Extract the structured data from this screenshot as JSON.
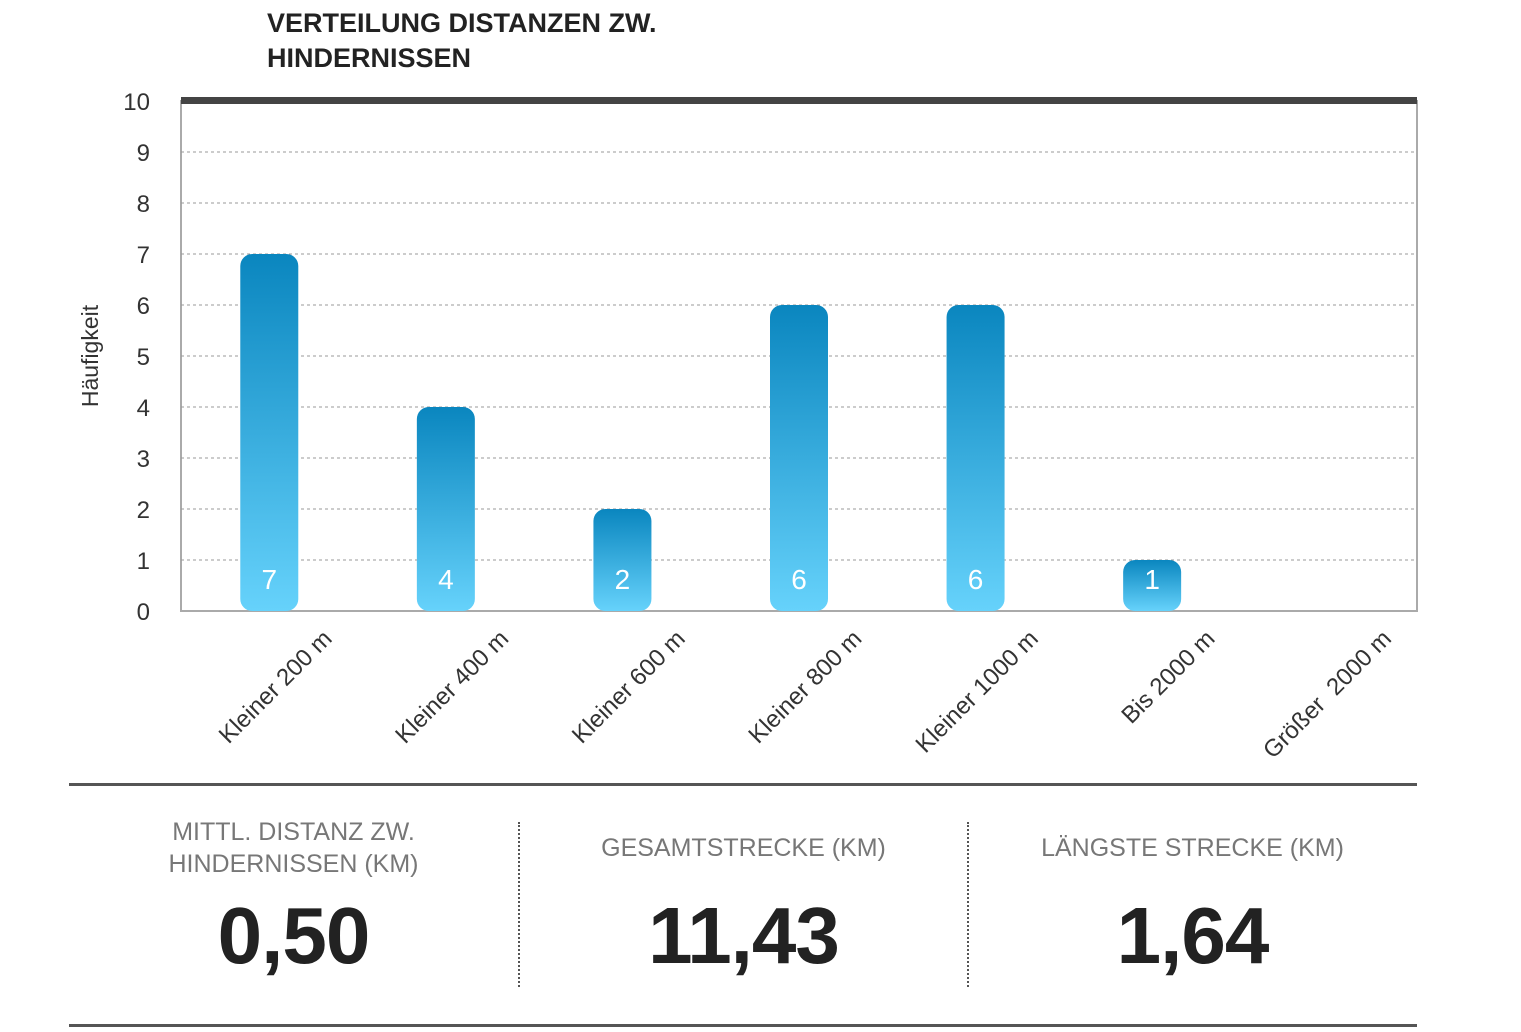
{
  "chart_data": {
    "type": "bar",
    "title": "VERTEILUNG DISTANZEN ZW. HINDERNISSEN",
    "title_lines": [
      "VERTEILUNG DISTANZEN ZW.",
      "HINDERNISSEN"
    ],
    "xlabel": "",
    "ylabel": "Häufigkeit",
    "ylim": [
      0,
      10
    ],
    "yticks": [
      0,
      1,
      2,
      3,
      4,
      5,
      6,
      7,
      8,
      9,
      10
    ],
    "grid": true,
    "categories": [
      "Kleiner 200 m",
      "Kleiner 400 m",
      "Kleiner 600 m",
      "Kleiner 800 m",
      "Kleiner 1000 m",
      "Bis 2000 m",
      "Größer  2000 m"
    ],
    "values": [
      7,
      4,
      2,
      6,
      6,
      1,
      0
    ],
    "data_labels": true,
    "colors": {
      "bar_top": "#0a86bf",
      "bar_bottom": "#66d2fb",
      "top_border": "#444444"
    }
  },
  "stats": [
    {
      "label_lines": [
        "MITTL. DISTANZ ZW.",
        "HINDERNISSEN (KM)"
      ],
      "value": "0,50"
    },
    {
      "label_lines": [
        "GESAMTSTRECKE (KM)"
      ],
      "value": "11,43"
    },
    {
      "label_lines": [
        "LÄNGSTE STRECKE (KM)"
      ],
      "value": "1,64"
    }
  ]
}
